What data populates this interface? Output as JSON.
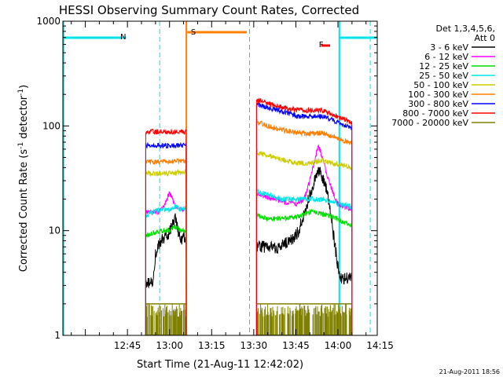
{
  "chart_data": {
    "type": "line",
    "title": "HESSI Observing Summary Count Rates, Corrected",
    "xlabel": "Start Time (21-Aug-11 12:42:02)",
    "ylabel_main": "Corrected Count Rate (s",
    "ylabel_sup1": "-1",
    "ylabel_mid": " detector",
    "ylabel_sup2": "-1",
    "ylabel_end": ")",
    "y_scale": "log",
    "ylim": [
      1,
      1000
    ],
    "xlim_minutes": [
      742,
      854
    ],
    "x_tick_labels": [
      "12:45",
      "13:00",
      "13:15",
      "13:30",
      "13:45",
      "14:00",
      "14:15"
    ],
    "x_tick_minutes": [
      765,
      780,
      795,
      810,
      825,
      840,
      855
    ],
    "y_tick_labels": [
      "1",
      "10",
      "100",
      "1000"
    ],
    "y_tick_values": [
      1,
      10,
      100,
      1000
    ],
    "legend": {
      "position": "right",
      "header1": "Det 1,3,4,5,6,",
      "header2": "Att 0",
      "entries": [
        {
          "label": "3 - 6 keV",
          "color": "#000000"
        },
        {
          "label": "6 - 12 keV",
          "color": "#ff00ff"
        },
        {
          "label": "12 - 25 keV",
          "color": "#00dd00"
        },
        {
          "label": "25 - 50 keV",
          "color": "#00e5e5"
        },
        {
          "label": "50 - 100 keV",
          "color": "#cccc00"
        },
        {
          "label": "100 - 300 keV",
          "color": "#ff7f00"
        },
        {
          "label": "300 - 800 keV",
          "color": "#0000ff"
        },
        {
          "label": "800 - 7000 keV",
          "color": "#ff0000"
        },
        {
          "label": "7000 - 20000 keV",
          "color": "#808000"
        }
      ]
    },
    "flags": [
      {
        "letter": "N",
        "color": "#00e5e5",
        "label_minute": 763.5
      },
      {
        "letter": "S",
        "color": "#ff7f00",
        "label_minute": 788.5
      },
      {
        "letter": "F",
        "color": "#ff0000",
        "label_minute": 834
      }
    ],
    "segments": [
      {
        "start": 771.5,
        "end": 786,
        "series": [
          {
            "color": "#000000",
            "pts": [
              [
                771.5,
                3
              ],
              [
                774,
                3.3
              ],
              [
                775,
                6
              ],
              [
                777,
                8
              ],
              [
                779,
                9
              ],
              [
                781,
                11
              ],
              [
                782,
                13
              ],
              [
                783,
                10
              ],
              [
                784,
                8
              ],
              [
                785,
                9
              ],
              [
                786,
                8
              ]
            ]
          },
          {
            "color": "#ff00ff",
            "pts": [
              [
                771.5,
                15
              ],
              [
                776,
                15
              ],
              [
                778,
                17
              ],
              [
                779,
                20
              ],
              [
                780,
                23
              ],
              [
                781,
                20
              ],
              [
                782,
                17
              ],
              [
                784,
                16
              ],
              [
                786,
                16
              ]
            ]
          },
          {
            "color": "#00dd00",
            "pts": [
              [
                771.5,
                9
              ],
              [
                774,
                9.5
              ],
              [
                777,
                10
              ],
              [
                780,
                10
              ],
              [
                782,
                11
              ],
              [
                784,
                10
              ],
              [
                786,
                10
              ]
            ]
          },
          {
            "color": "#00e5e5",
            "pts": [
              [
                771.5,
                14
              ],
              [
                774,
                15
              ],
              [
                777,
                16
              ],
              [
                780,
                16
              ],
              [
                782,
                17
              ],
              [
                784,
                16
              ],
              [
                786,
                16
              ]
            ]
          },
          {
            "color": "#cccc00",
            "pts": [
              [
                771.5,
                35
              ],
              [
                786,
                36
              ]
            ]
          },
          {
            "color": "#ff7f00",
            "pts": [
              [
                771.5,
                45
              ],
              [
                786,
                46
              ]
            ]
          },
          {
            "color": "#0000ff",
            "pts": [
              [
                771.5,
                65
              ],
              [
                786,
                65
              ]
            ]
          },
          {
            "color": "#ff0000",
            "pts": [
              [
                771.5,
                88
              ],
              [
                786,
                88
              ]
            ]
          }
        ]
      },
      {
        "start": 811,
        "end": 845,
        "series": [
          {
            "color": "#000000",
            "pts": [
              [
                811,
                7
              ],
              [
                815,
                7
              ],
              [
                819,
                6.8
              ],
              [
                821,
                7.5
              ],
              [
                823,
                8
              ],
              [
                825,
                9
              ],
              [
                826,
                10
              ],
              [
                827,
                12
              ],
              [
                829,
                18
              ],
              [
                831,
                26
              ],
              [
                832,
                33
              ],
              [
                833,
                38
              ],
              [
                834,
                35
              ],
              [
                835,
                30
              ],
              [
                836,
                24
              ],
              [
                837,
                17
              ],
              [
                838,
                11
              ],
              [
                839,
                7
              ],
              [
                840,
                4.5
              ],
              [
                841,
                3.5
              ],
              [
                843,
                3.5
              ],
              [
                845,
                3.5
              ]
            ]
          },
          {
            "color": "#ff00ff",
            "pts": [
              [
                811,
                22
              ],
              [
                815,
                21
              ],
              [
                820,
                19
              ],
              [
                825,
                18
              ],
              [
                828,
                20
              ],
              [
                830,
                30
              ],
              [
                832,
                50
              ],
              [
                833,
                65
              ],
              [
                834,
                55
              ],
              [
                836,
                35
              ],
              [
                838,
                24
              ],
              [
                840,
                18
              ],
              [
                842,
                17
              ],
              [
                845,
                16
              ]
            ]
          },
          {
            "color": "#00dd00",
            "pts": [
              [
                811,
                14
              ],
              [
                815,
                13
              ],
              [
                820,
                13
              ],
              [
                825,
                13.5
              ],
              [
                830,
                15
              ],
              [
                832,
                15
              ],
              [
                836,
                14
              ],
              [
                840,
                13
              ],
              [
                842,
                12
              ],
              [
                845,
                11
              ]
            ]
          },
          {
            "color": "#00e5e5",
            "pts": [
              [
                811,
                24
              ],
              [
                815,
                22
              ],
              [
                820,
                20
              ],
              [
                825,
                20
              ],
              [
                830,
                20
              ],
              [
                835,
                20
              ],
              [
                840,
                18
              ],
              [
                845,
                17
              ]
            ]
          },
          {
            "color": "#cccc00",
            "pts": [
              [
                811,
                56
              ],
              [
                815,
                52
              ],
              [
                820,
                48
              ],
              [
                825,
                44
              ],
              [
                830,
                44
              ],
              [
                834,
                47
              ],
              [
                838,
                44
              ],
              [
                842,
                42
              ],
              [
                845,
                40
              ]
            ]
          },
          {
            "color": "#ff7f00",
            "pts": [
              [
                811,
                110
              ],
              [
                815,
                100
              ],
              [
                820,
                92
              ],
              [
                825,
                86
              ],
              [
                830,
                84
              ],
              [
                834,
                86
              ],
              [
                838,
                80
              ],
              [
                842,
                73
              ],
              [
                845,
                68
              ]
            ]
          },
          {
            "color": "#0000ff",
            "pts": [
              [
                811,
                160
              ],
              [
                815,
                150
              ],
              [
                820,
                138
              ],
              [
                825,
                125
              ],
              [
                830,
                122
              ],
              [
                834,
                124
              ],
              [
                838,
                115
              ],
              [
                842,
                102
              ],
              [
                845,
                95
              ]
            ]
          },
          {
            "color": "#ff0000",
            "pts": [
              [
                811,
                178
              ],
              [
                815,
                165
              ],
              [
                820,
                150
              ],
              [
                825,
                143
              ],
              [
                830,
                140
              ],
              [
                834,
                142
              ],
              [
                838,
                130
              ],
              [
                842,
                115
              ],
              [
                845,
                108
              ]
            ]
          }
        ]
      }
    ],
    "timestamp": "21-Aug-2011 18:56"
  }
}
